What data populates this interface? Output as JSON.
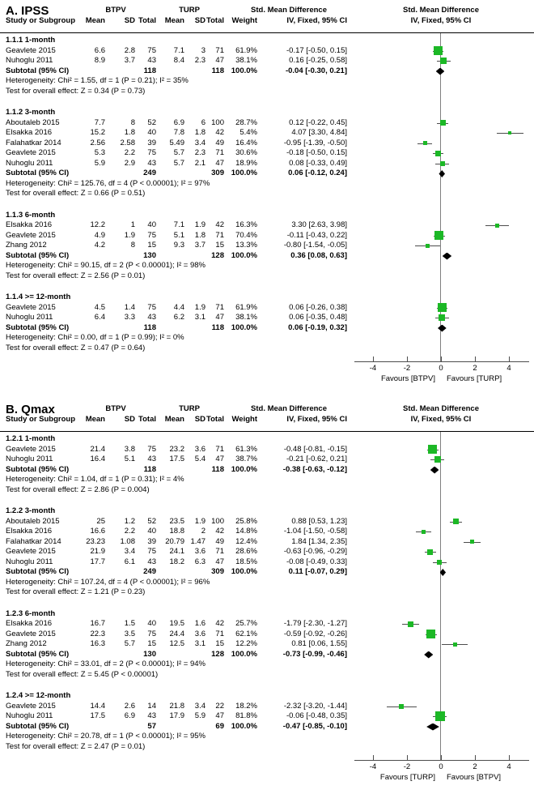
{
  "chart_data": {
    "type": "forest",
    "colors": {
      "marker": "#1cb826",
      "diamond": "#000000",
      "line": "#4d4d4d"
    },
    "axis": {
      "tick_values": [
        -4,
        -2,
        0,
        2,
        4
      ],
      "tick_labels": [
        "-4",
        "-2",
        "0",
        "2",
        "4"
      ],
      "xlim": [
        -5.2,
        5.2
      ]
    },
    "headers": {
      "group1": "BTPV",
      "group2": "TURP",
      "study": "Study or Subgroup",
      "mean": "Mean",
      "sd": "SD",
      "total": "Total",
      "weight": "Weight",
      "smd": "Std. Mean Difference",
      "method": "IV, Fixed, 95% CI"
    },
    "panels": [
      {
        "title": "A. IPSS",
        "favours_left": "Favours [BTPV]",
        "favours_right": "Favours [TURP]",
        "subgroups": [
          {
            "label": "1.1.1 1-month",
            "studies": [
              {
                "name": "Geavlete 2015",
                "m1": "6.6",
                "sd1": "2.8",
                "t1": "75",
                "m2": "7.1",
                "sd2": "3",
                "t2": "71",
                "weight": "61.9%",
                "ci": "-0.17 [-0.50, 0.15]",
                "est": -0.17,
                "lo": -0.5,
                "hi": 0.15,
                "w": 61.9
              },
              {
                "name": "Nuhoglu 2011",
                "m1": "8.9",
                "sd1": "3.7",
                "t1": "43",
                "m2": "8.4",
                "sd2": "2.3",
                "t2": "47",
                "weight": "38.1%",
                "ci": "0.16 [-0.25, 0.58]",
                "est": 0.16,
                "lo": -0.25,
                "hi": 0.58,
                "w": 38.1
              }
            ],
            "subtotal": {
              "label": "Subtotal (95% CI)",
              "t1": "118",
              "t2": "118",
              "weight": "100.0%",
              "ci": "-0.04 [-0.30, 0.21]",
              "est": -0.04,
              "lo": -0.3,
              "hi": 0.21
            },
            "het": "Heterogeneity: Chi² = 1.55, df = 1 (P = 0.21); I² = 35%",
            "test": "Test for overall effect: Z = 0.34 (P = 0.73)"
          },
          {
            "label": "1.1.2 3-month",
            "studies": [
              {
                "name": "Aboutaleb 2015",
                "m1": "7.7",
                "sd1": "8",
                "t1": "52",
                "m2": "6.9",
                "sd2": "6",
                "t2": "100",
                "weight": "28.7%",
                "ci": "0.12 [-0.22, 0.45]",
                "est": 0.12,
                "lo": -0.22,
                "hi": 0.45,
                "w": 28.7
              },
              {
                "name": "Elsakka 2016",
                "m1": "15.2",
                "sd1": "1.8",
                "t1": "40",
                "m2": "7.8",
                "sd2": "1.8",
                "t2": "42",
                "weight": "5.4%",
                "ci": "4.07 [3.30, 4.84]",
                "est": 4.07,
                "lo": 3.3,
                "hi": 4.84,
                "w": 5.4
              },
              {
                "name": "Falahatkar 2014",
                "m1": "2.56",
                "sd1": "2.58",
                "t1": "39",
                "m2": "5.49",
                "sd2": "3.4",
                "t2": "49",
                "weight": "16.4%",
                "ci": "-0.95 [-1.39, -0.50]",
                "est": -0.95,
                "lo": -1.39,
                "hi": -0.5,
                "w": 16.4
              },
              {
                "name": "Geavlete 2015",
                "m1": "5.3",
                "sd1": "2.2",
                "t1": "75",
                "m2": "5.7",
                "sd2": "2.3",
                "t2": "71",
                "weight": "30.6%",
                "ci": "-0.18 [-0.50, 0.15]",
                "est": -0.18,
                "lo": -0.5,
                "hi": 0.15,
                "w": 30.6
              },
              {
                "name": "Nuhoglu 2011",
                "m1": "5.9",
                "sd1": "2.9",
                "t1": "43",
                "m2": "5.7",
                "sd2": "2.1",
                "t2": "47",
                "weight": "18.9%",
                "ci": "0.08 [-0.33, 0.49]",
                "est": 0.08,
                "lo": -0.33,
                "hi": 0.49,
                "w": 18.9
              }
            ],
            "subtotal": {
              "label": "Subtotal (95% CI)",
              "t1": "249",
              "t2": "309",
              "weight": "100.0%",
              "ci": "0.06 [-0.12, 0.24]",
              "est": 0.06,
              "lo": -0.12,
              "hi": 0.24
            },
            "het": "Heterogeneity: Chi² = 125.76, df = 4 (P < 0.00001); I² = 97%",
            "test": "Test for overall effect: Z = 0.66 (P = 0.51)"
          },
          {
            "label": "1.1.3 6-month",
            "studies": [
              {
                "name": "Elsakka 2016",
                "m1": "12.2",
                "sd1": "1",
                "t1": "40",
                "m2": "7.1",
                "sd2": "1.9",
                "t2": "42",
                "weight": "16.3%",
                "ci": "3.30 [2.63, 3.98]",
                "est": 3.3,
                "lo": 2.63,
                "hi": 3.98,
                "w": 16.3
              },
              {
                "name": "Geavlete 2015",
                "m1": "4.9",
                "sd1": "1.9",
                "t1": "75",
                "m2": "5.1",
                "sd2": "1.8",
                "t2": "71",
                "weight": "70.4%",
                "ci": "-0.11 [-0.43, 0.22]",
                "est": -0.11,
                "lo": -0.43,
                "hi": 0.22,
                "w": 70.4
              },
              {
                "name": "Zhang 2012",
                "m1": "4.2",
                "sd1": "8",
                "t1": "15",
                "m2": "9.3",
                "sd2": "3.7",
                "t2": "15",
                "weight": "13.3%",
                "ci": "-0.80 [-1.54, -0.05]",
                "est": -0.8,
                "lo": -1.54,
                "hi": -0.05,
                "w": 13.3
              }
            ],
            "subtotal": {
              "label": "Subtotal (95% CI)",
              "t1": "130",
              "t2": "128",
              "weight": "100.0%",
              "ci": "0.36 [0.08, 0.63]",
              "est": 0.36,
              "lo": 0.08,
              "hi": 0.63
            },
            "het": "Heterogeneity: Chi² = 90.15, df = 2 (P < 0.00001); I² = 98%",
            "test": "Test for overall effect: Z = 2.56 (P = 0.01)"
          },
          {
            "label": "1.1.4 >= 12-month",
            "studies": [
              {
                "name": "Geavlete 2015",
                "m1": "4.5",
                "sd1": "1.4",
                "t1": "75",
                "m2": "4.4",
                "sd2": "1.9",
                "t2": "71",
                "weight": "61.9%",
                "ci": "0.06 [-0.26, 0.38]",
                "est": 0.06,
                "lo": -0.26,
                "hi": 0.38,
                "w": 61.9
              },
              {
                "name": "Nuhoglu 2011",
                "m1": "6.4",
                "sd1": "3.3",
                "t1": "43",
                "m2": "6.2",
                "sd2": "3.1",
                "t2": "47",
                "weight": "38.1%",
                "ci": "0.06 [-0.35, 0.48]",
                "est": 0.06,
                "lo": -0.35,
                "hi": 0.48,
                "w": 38.1
              }
            ],
            "subtotal": {
              "label": "Subtotal (95% CI)",
              "t1": "118",
              "t2": "118",
              "weight": "100.0%",
              "ci": "0.06 [-0.19, 0.32]",
              "est": 0.06,
              "lo": -0.19,
              "hi": 0.32
            },
            "het": "Heterogeneity: Chi² = 0.00, df = 1 (P = 0.99); I² = 0%",
            "test": "Test for overall effect: Z = 0.47 (P = 0.64)"
          }
        ]
      },
      {
        "title": "B. Qmax",
        "favours_left": "Favours [TURP]",
        "favours_right": "Favours [BTPV]",
        "subgroups": [
          {
            "label": "1.2.1 1-month",
            "studies": [
              {
                "name": "Geavlete 2015",
                "m1": "21.4",
                "sd1": "3.8",
                "t1": "75",
                "m2": "23.2",
                "sd2": "3.6",
                "t2": "71",
                "weight": "61.3%",
                "ci": "-0.48 [-0.81, -0.15]",
                "est": -0.48,
                "lo": -0.81,
                "hi": -0.15,
                "w": 61.3
              },
              {
                "name": "Nuhoglu 2011",
                "m1": "16.4",
                "sd1": "5.1",
                "t1": "43",
                "m2": "17.5",
                "sd2": "5.4",
                "t2": "47",
                "weight": "38.7%",
                "ci": "-0.21 [-0.62, 0.21]",
                "est": -0.21,
                "lo": -0.62,
                "hi": 0.21,
                "w": 38.7
              }
            ],
            "subtotal": {
              "label": "Subtotal (95% CI)",
              "t1": "118",
              "t2": "118",
              "weight": "100.0%",
              "ci": "-0.38 [-0.63, -0.12]",
              "est": -0.38,
              "lo": -0.63,
              "hi": -0.12
            },
            "het": "Heterogeneity: Chi² = 1.04, df = 1 (P = 0.31); I² = 4%",
            "test": "Test for overall effect: Z = 2.86 (P = 0.004)"
          },
          {
            "label": "1.2.2 3-month",
            "studies": [
              {
                "name": "Aboutaleb 2015",
                "m1": "25",
                "sd1": "1.2",
                "t1": "52",
                "m2": "23.5",
                "sd2": "1.9",
                "t2": "100",
                "weight": "25.8%",
                "ci": "0.88 [0.53, 1.23]",
                "est": 0.88,
                "lo": 0.53,
                "hi": 1.23,
                "w": 25.8
              },
              {
                "name": "Elsakka 2016",
                "m1": "16.6",
                "sd1": "2.2",
                "t1": "40",
                "m2": "18.8",
                "sd2": "2",
                "t2": "42",
                "weight": "14.8%",
                "ci": "-1.04 [-1.50, -0.58]",
                "est": -1.04,
                "lo": -1.5,
                "hi": -0.58,
                "w": 14.8
              },
              {
                "name": "Falahatkar 2014",
                "m1": "23.23",
                "sd1": "1.08",
                "t1": "39",
                "m2": "20.79",
                "sd2": "1.47",
                "t2": "49",
                "weight": "12.4%",
                "ci": "1.84 [1.34, 2.35]",
                "est": 1.84,
                "lo": 1.34,
                "hi": 2.35,
                "w": 12.4
              },
              {
                "name": "Geavlete 2015",
                "m1": "21.9",
                "sd1": "3.4",
                "t1": "75",
                "m2": "24.1",
                "sd2": "3.6",
                "t2": "71",
                "weight": "28.6%",
                "ci": "-0.63 [-0.96, -0.29]",
                "est": -0.63,
                "lo": -0.96,
                "hi": -0.29,
                "w": 28.6
              },
              {
                "name": "Nuhoglu 2011",
                "m1": "17.7",
                "sd1": "6.1",
                "t1": "43",
                "m2": "18.2",
                "sd2": "6.3",
                "t2": "47",
                "weight": "18.5%",
                "ci": "-0.08 [-0.49, 0.33]",
                "est": -0.08,
                "lo": -0.49,
                "hi": 0.33,
                "w": 18.5
              }
            ],
            "subtotal": {
              "label": "Subtotal (95% CI)",
              "t1": "249",
              "t2": "309",
              "weight": "100.0%",
              "ci": "0.11 [-0.07, 0.29]",
              "est": 0.11,
              "lo": -0.07,
              "hi": 0.29
            },
            "het": "Heterogeneity: Chi² = 107.24, df = 4 (P < 0.00001); I² = 96%",
            "test": "Test for overall effect: Z = 1.21 (P = 0.23)"
          },
          {
            "label": "1.2.3 6-month",
            "studies": [
              {
                "name": "Elsakka 2016",
                "m1": "16.7",
                "sd1": "1.5",
                "t1": "40",
                "m2": "19.5",
                "sd2": "1.6",
                "t2": "42",
                "weight": "25.7%",
                "ci": "-1.79 [-2.30, -1.27]",
                "est": -1.79,
                "lo": -2.3,
                "hi": -1.27,
                "w": 25.7
              },
              {
                "name": "Geavlete 2015",
                "m1": "22.3",
                "sd1": "3.5",
                "t1": "75",
                "m2": "24.4",
                "sd2": "3.6",
                "t2": "71",
                "weight": "62.1%",
                "ci": "-0.59 [-0.92, -0.26]",
                "est": -0.59,
                "lo": -0.92,
                "hi": -0.26,
                "w": 62.1
              },
              {
                "name": "Zhang 2012",
                "m1": "16.3",
                "sd1": "5.7",
                "t1": "15",
                "m2": "12.5",
                "sd2": "3.1",
                "t2": "15",
                "weight": "12.2%",
                "ci": "0.81 [0.06, 1.55]",
                "est": 0.81,
                "lo": 0.06,
                "hi": 1.55,
                "w": 12.2
              }
            ],
            "subtotal": {
              "label": "Subtotal (95% CI)",
              "t1": "130",
              "t2": "128",
              "weight": "100.0%",
              "ci": "-0.73 [-0.99, -0.46]",
              "est": -0.73,
              "lo": -0.99,
              "hi": -0.46
            },
            "het": "Heterogeneity: Chi² = 33.01, df = 2 (P < 0.00001); I² = 94%",
            "test": "Test for overall effect: Z = 5.45 (P < 0.00001)"
          },
          {
            "label": "1.2.4 >= 12-month",
            "studies": [
              {
                "name": "Geavlete 2015",
                "m1": "14.4",
                "sd1": "2.6",
                "t1": "14",
                "m2": "21.8",
                "sd2": "3.4",
                "t2": "22",
                "weight": "18.2%",
                "ci": "-2.32 [-3.20, -1.44]",
                "est": -2.32,
                "lo": -3.2,
                "hi": -1.44,
                "w": 18.2
              },
              {
                "name": "Nuhoglu 2011",
                "m1": "17.5",
                "sd1": "6.9",
                "t1": "43",
                "m2": "17.9",
                "sd2": "5.9",
                "t2": "47",
                "weight": "81.8%",
                "ci": "-0.06 [-0.48, 0.35]",
                "est": -0.06,
                "lo": -0.48,
                "hi": 0.35,
                "w": 81.8
              }
            ],
            "subtotal": {
              "label": "Subtotal (95% CI)",
              "t1": "57",
              "t2": "69",
              "weight": "100.0%",
              "ci": "-0.47 [-0.85, -0.10]",
              "est": -0.47,
              "lo": -0.85,
              "hi": -0.1
            },
            "het": "Heterogeneity: Chi² = 20.78, df = 1 (P < 0.00001); I² = 95%",
            "test": "Test for overall effect: Z = 2.47 (P = 0.01)"
          }
        ]
      }
    ]
  }
}
